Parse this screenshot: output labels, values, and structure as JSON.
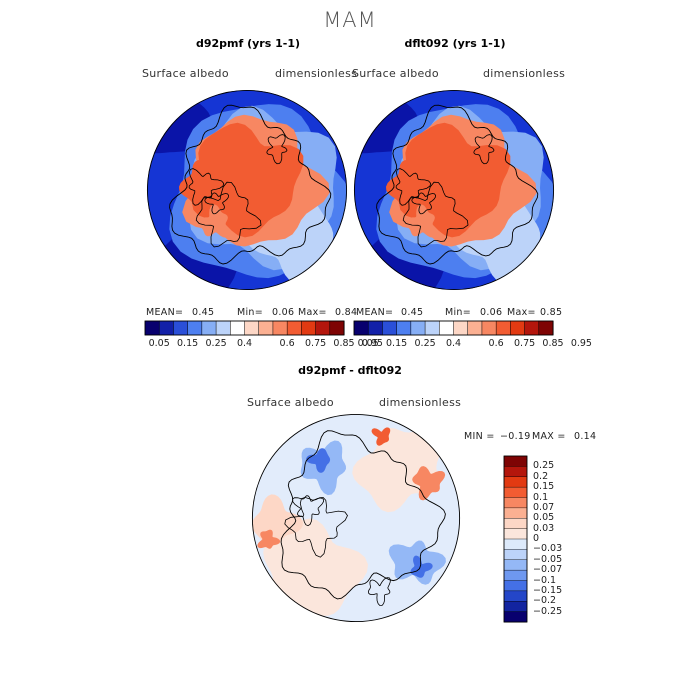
{
  "title": "MAM",
  "panels": [
    {
      "title": "d92pmf (yrs 1-1)",
      "variable": "Surface albedo",
      "units": "dimensionless",
      "stats": {
        "mean_label": "MEAN=",
        "mean": "0.45",
        "min_label": "Min=",
        "min": "0.06",
        "max_label": "Max=",
        "max": "0.84"
      },
      "colorbar_ticks": [
        "0.05",
        "0.15",
        "0.25",
        "0.4",
        "0.6",
        "0.75",
        "0.85",
        "0.95"
      ]
    },
    {
      "title": "dflt092 (yrs 1-1)",
      "variable": "Surface albedo",
      "units": "dimensionless",
      "stats": {
        "mean_label": "MEAN=",
        "mean": "0.45",
        "min_label": "Min=",
        "min": "0.06",
        "max_label": "Max=",
        "max": "0.85"
      },
      "colorbar_ticks": [
        "0.05",
        "0.15",
        "0.25",
        "0.4",
        "0.6",
        "0.75",
        "0.85",
        "0.95"
      ]
    }
  ],
  "diff_panel": {
    "title": "d92pmf - dflt092",
    "variable": "Surface albedo",
    "units": "dimensionless",
    "stats": {
      "min_label": "MIN =",
      "min": "−0.19",
      "max_label": "MAX =",
      "max": "0.14"
    },
    "colorbar_ticks": [
      "0.25",
      "0.2",
      "0.15",
      "0.1",
      "0.07",
      "0.05",
      "0.03",
      "0",
      "−0.03",
      "−0.05",
      "−0.07",
      "−0.1",
      "−0.15",
      "−0.2",
      "−0.25"
    ]
  },
  "colors": {
    "seq_colorbar": [
      "#08006e",
      "#1220a8",
      "#2a4fd8",
      "#4d7ff0",
      "#86aef5",
      "#bcd3f9",
      "#ffffff",
      "#fdd7c6",
      "#fbb092",
      "#f78762",
      "#f25c32",
      "#e23a12",
      "#b4160c",
      "#7e0404"
    ],
    "diff_colorbar": [
      "#7e0404",
      "#b4160c",
      "#e23a12",
      "#f25c32",
      "#f78762",
      "#fbb092",
      "#fdd7c6",
      "#fbe6dc",
      "#ddeafb",
      "#bcd3f9",
      "#94b8f6",
      "#6e98f0",
      "#4470e6",
      "#2446c8",
      "#1224a0",
      "#08006e"
    ],
    "ocean": "#1535d4",
    "ice": "#f25c32",
    "diff_base": "#e2ecfb"
  }
}
